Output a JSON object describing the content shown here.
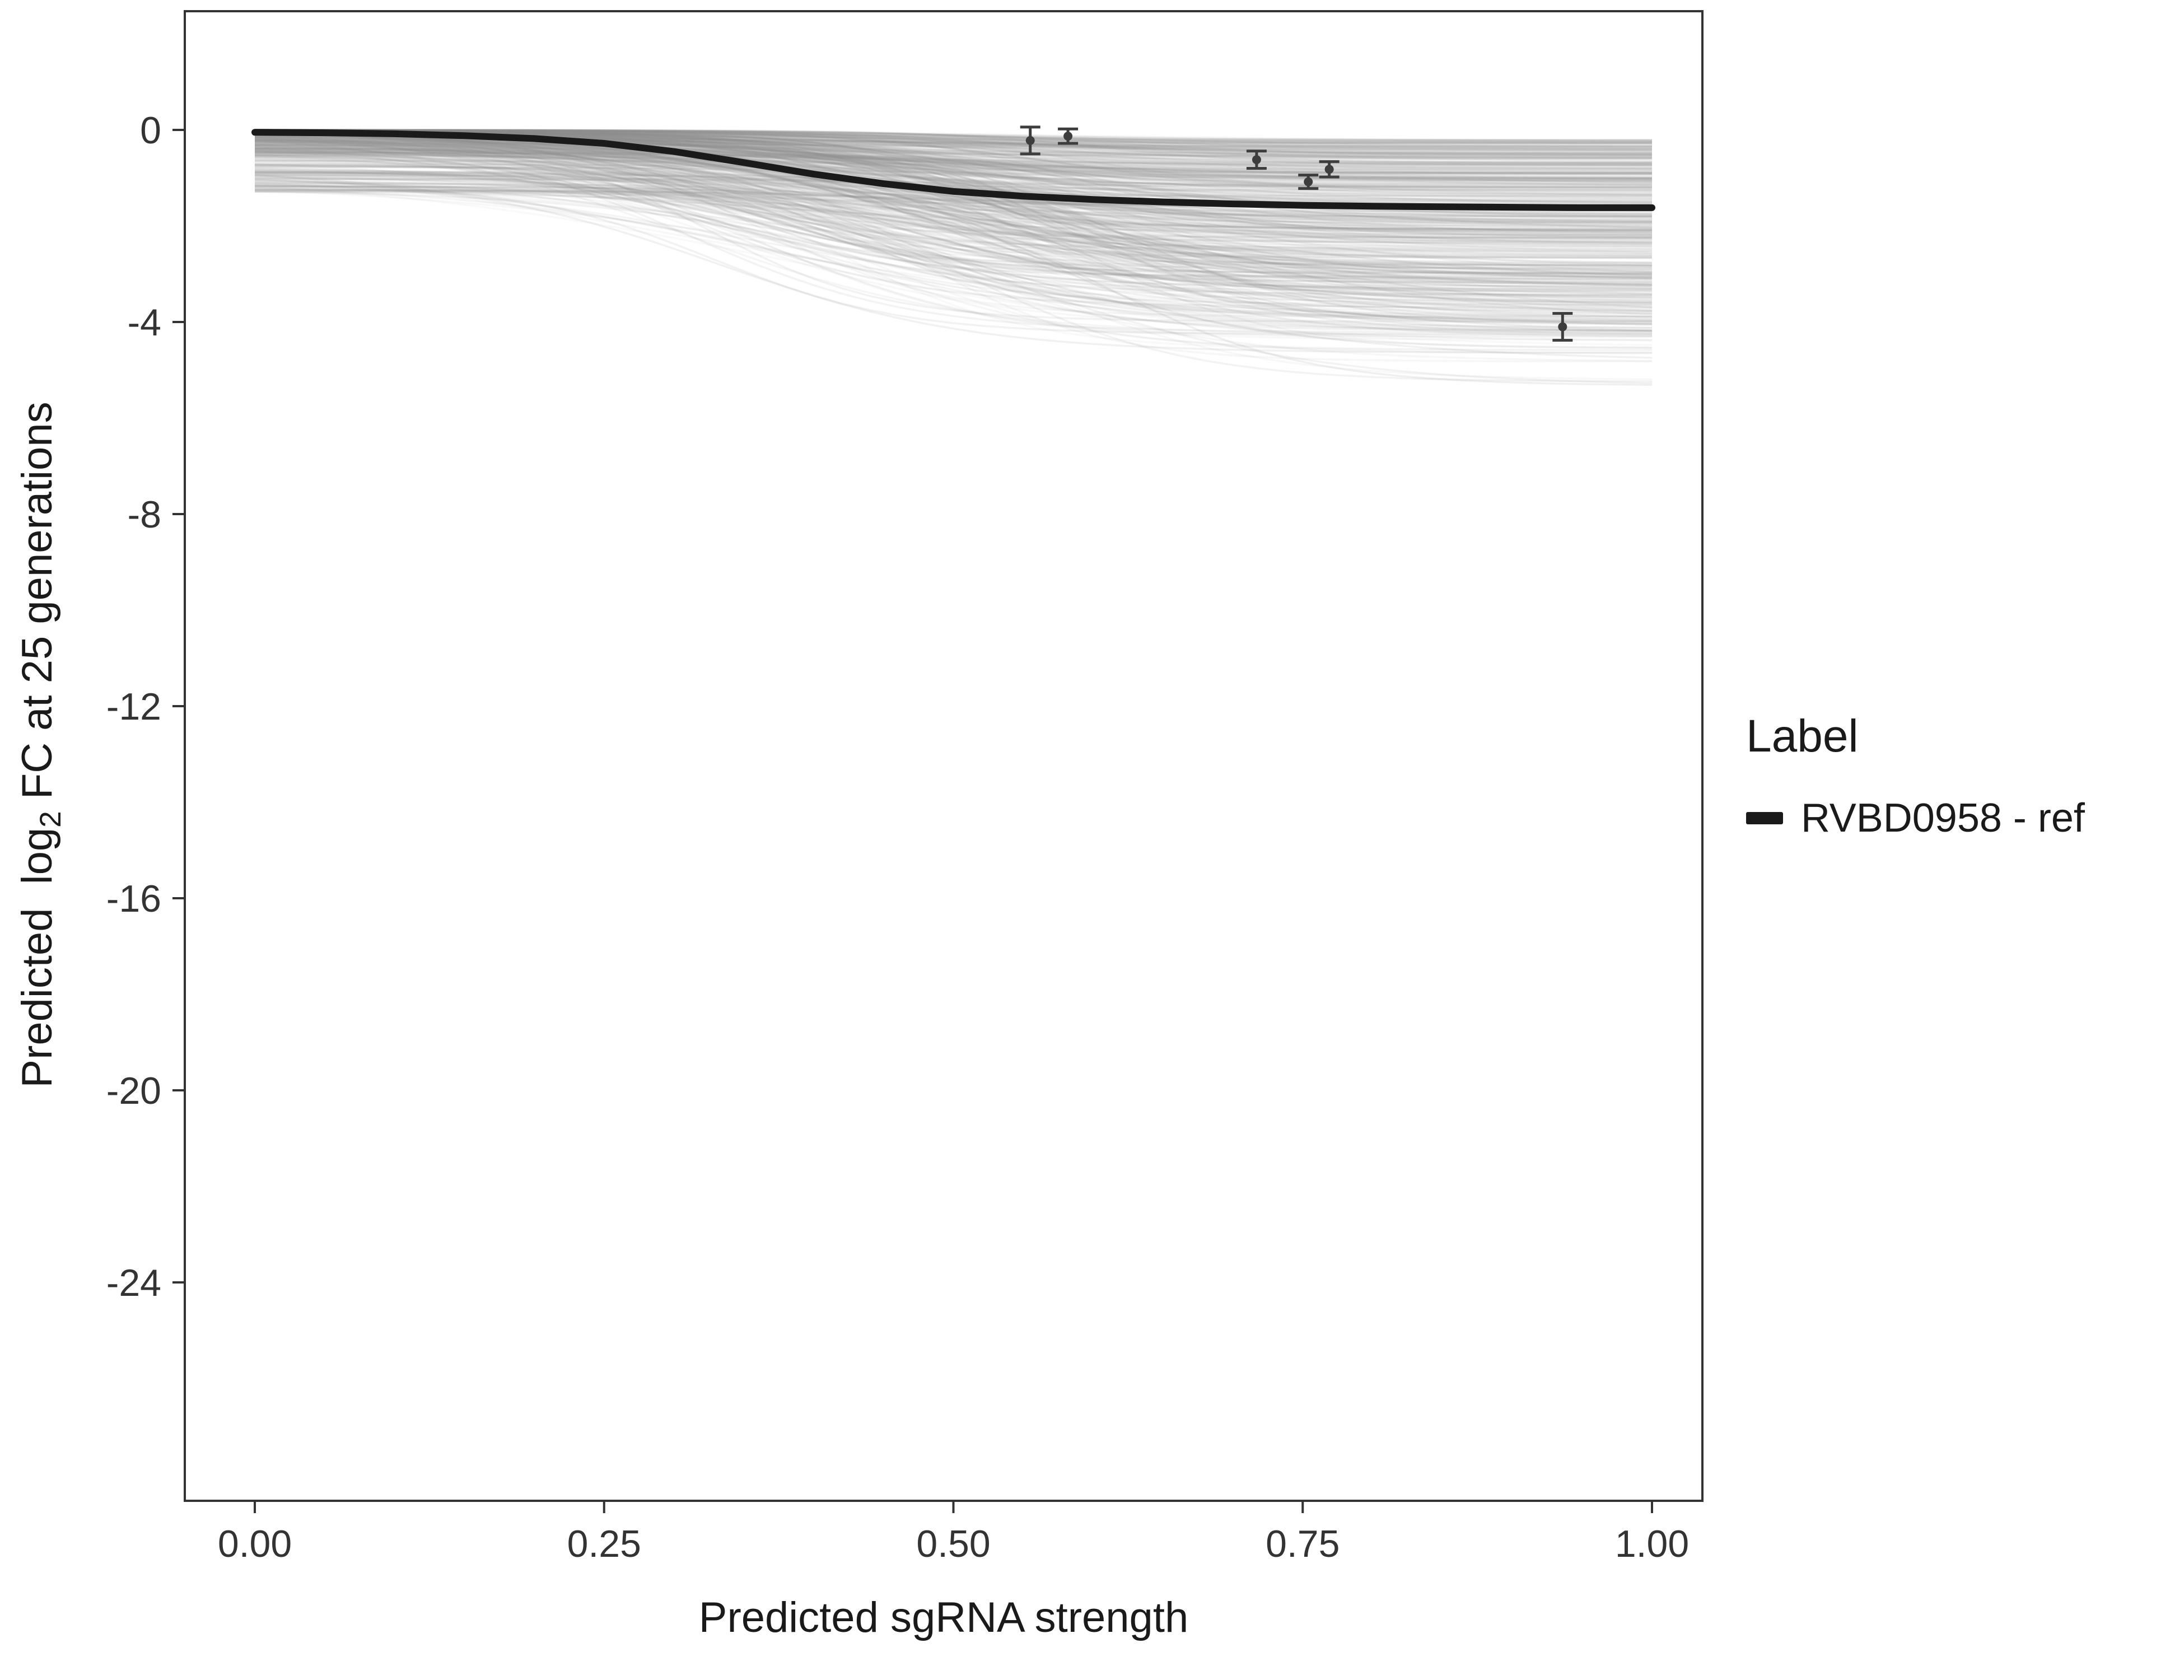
{
  "chart_data": {
    "type": "line",
    "title": "",
    "xlabel": "Predicted sgRNA strength",
    "ylabel": "Predicted log2 FC at 25 generations",
    "ylabel_parts": {
      "pre": "Predicted  log",
      "sub": "2",
      "post": " FC at 25 generations"
    },
    "xlim": [
      0,
      1
    ],
    "ylim_display": [
      -28.5,
      2.4
    ],
    "grid": false,
    "x_ticks": [
      {
        "value": 0.0,
        "label": "0.00"
      },
      {
        "value": 0.25,
        "label": "0.25"
      },
      {
        "value": 0.5,
        "label": "0.50"
      },
      {
        "value": 0.75,
        "label": "0.75"
      },
      {
        "value": 1.0,
        "label": "1.00"
      }
    ],
    "y_ticks": [
      {
        "value": 0,
        "label": "0"
      },
      {
        "value": -4,
        "label": "-4"
      },
      {
        "value": -8,
        "label": "-8"
      },
      {
        "value": -12,
        "label": "-12"
      },
      {
        "value": -16,
        "label": "-16"
      },
      {
        "value": -20,
        "label": "-20"
      },
      {
        "value": -24,
        "label": "-24"
      }
    ],
    "legend": {
      "title": "Label",
      "position": "right",
      "items": [
        {
          "label": "RVBD0958 - ref",
          "color": "#1a1a1a",
          "marker": "line"
        }
      ]
    },
    "series": [
      {
        "name": "RVBD0958 - ref",
        "color": "#1a1a1a",
        "stroke_width": 12,
        "x": [
          0.0,
          0.05,
          0.1,
          0.15,
          0.2,
          0.25,
          0.3,
          0.35,
          0.4,
          0.45,
          0.5,
          0.55,
          0.6,
          0.65,
          0.7,
          0.75,
          0.8,
          0.85,
          0.9,
          0.95,
          1.0
        ],
        "y": [
          -0.05,
          -0.06,
          -0.08,
          -0.12,
          -0.18,
          -0.28,
          -0.45,
          -0.68,
          -0.92,
          -1.12,
          -1.28,
          -1.38,
          -1.45,
          -1.5,
          -1.54,
          -1.57,
          -1.59,
          -1.6,
          -1.61,
          -1.62,
          -1.62
        ]
      }
    ],
    "points": [
      {
        "x": 0.555,
        "y": -0.22,
        "err": 0.28
      },
      {
        "x": 0.582,
        "y": -0.13,
        "err": 0.15
      },
      {
        "x": 0.717,
        "y": -0.62,
        "err": 0.18
      },
      {
        "x": 0.754,
        "y": -1.08,
        "err": 0.14
      },
      {
        "x": 0.769,
        "y": -0.82,
        "err": 0.16
      },
      {
        "x": 0.936,
        "y": -4.1,
        "err": 0.28
      }
    ],
    "points_style": {
      "color": "#3d3d3d",
      "radius": 8,
      "cap_width": 36,
      "stroke_width": 5
    },
    "ensemble": {
      "description": "posterior sample curves (background band)",
      "count": 500,
      "seed": 42,
      "color": "#8f8f8f",
      "opacity_min": 0.05,
      "opacity_max": 0.14,
      "stroke_width": 3.5,
      "start_offset_max": 1.3,
      "drop_min": 0.2,
      "drop_max": 4.2,
      "midpoint_min": 0.3,
      "midpoint_max": 0.62,
      "steepness_min": 6,
      "steepness_max": 16
    },
    "panel": {
      "border_color": "#333333",
      "background": "#ffffff",
      "tick_color": "#333333",
      "tick_label_color": "#333333"
    }
  }
}
